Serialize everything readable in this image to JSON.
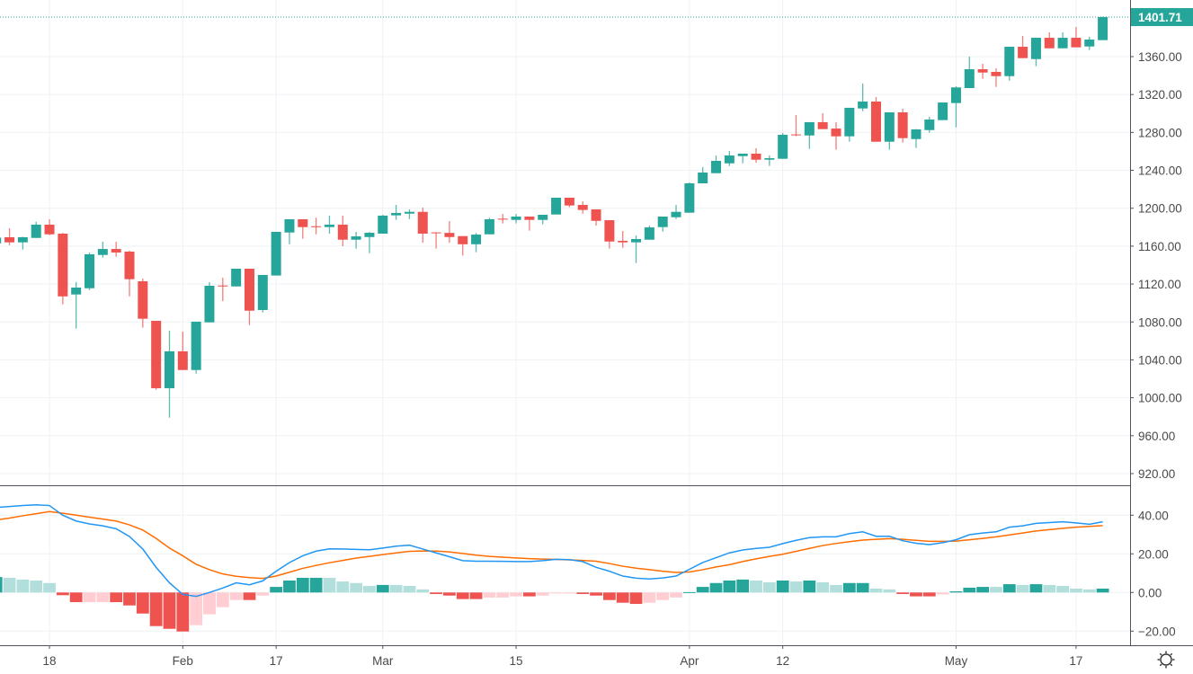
{
  "chart_data": [
    {
      "type": "candlestick",
      "pane": "price",
      "price_axis_ticks": [
        920,
        960,
        1000,
        1040,
        1080,
        1120,
        1160,
        1200,
        1240,
        1280,
        1320,
        1360
      ],
      "price_tick_labels": [
        "920.00",
        "960.00",
        "1000.00",
        "1040.00",
        "1080.00",
        "1120.00",
        "1160.00",
        "1200.00",
        "1240.00",
        "1280.00",
        "1320.00",
        "1360.00"
      ],
      "ylim": [
        907.7,
        1419.7
      ],
      "last_price": 1401.71,
      "last_price_label": "1401.71",
      "grid": true,
      "candle_fields": [
        "open",
        "high",
        "low",
        "close"
      ],
      "candles": [
        [
          1163,
          1170,
          1160,
          1169
        ],
        [
          1169.4,
          1178.9,
          1161,
          1164
        ],
        [
          1164,
          1170,
          1156.4,
          1169.4
        ],
        [
          1168.7,
          1185.8,
          1168.7,
          1182.7
        ],
        [
          1182.7,
          1188.4,
          1171.6,
          1172.5
        ],
        [
          1173.2,
          1174,
          1098.6,
          1107
        ],
        [
          1109,
          1122,
          1073,
          1116.3
        ],
        [
          1115.6,
          1153.3,
          1113.7,
          1151.4
        ],
        [
          1150.7,
          1164.6,
          1147.9,
          1157
        ],
        [
          1157,
          1164.6,
          1148.8,
          1153.3
        ],
        [
          1154.2,
          1155.2,
          1107,
          1125.1
        ],
        [
          1122.9,
          1125.8,
          1074,
          1083.4
        ],
        [
          1081.2,
          1081.2,
          1008.5,
          1010.1
        ],
        [
          1010.1,
          1070.8,
          979,
          1049
        ],
        [
          1049,
          1069.8,
          1029.3,
          1029.3
        ],
        [
          1029.3,
          1080.3,
          1025.5,
          1080.3
        ],
        [
          1079.6,
          1122,
          1079.6,
          1118.2
        ],
        [
          1118.5,
          1126.7,
          1102,
          1117.5
        ],
        [
          1117.5,
          1136.2,
          1117.5,
          1136.2
        ],
        [
          1136.2,
          1136.2,
          1076.7,
          1091.9
        ],
        [
          1092.6,
          1129.6,
          1090,
          1129.6
        ],
        [
          1129,
          1175.1,
          1129,
          1175.1
        ],
        [
          1174.4,
          1188.4,
          1162,
          1188.4
        ],
        [
          1188.4,
          1188.4,
          1167.8,
          1180.1
        ],
        [
          1181,
          1190,
          1172.5,
          1180
        ],
        [
          1180.1,
          1192.2,
          1173.2,
          1182.7
        ],
        [
          1182.7,
          1192.2,
          1159.9,
          1166.8
        ],
        [
          1166.8,
          1175,
          1157.4,
          1170.3
        ],
        [
          1169.6,
          1175,
          1152.6,
          1174.1
        ],
        [
          1173.2,
          1193,
          1173.2,
          1192.2
        ],
        [
          1192.5,
          1203.5,
          1187.7,
          1195
        ],
        [
          1194.3,
          1198.8,
          1188.6,
          1196.2
        ],
        [
          1196.2,
          1200.7,
          1163.7,
          1173.2
        ],
        [
          1174.5,
          1174.8,
          1157.4,
          1173.8
        ],
        [
          1174,
          1186.5,
          1163.7,
          1169.6
        ],
        [
          1170.6,
          1170.6,
          1150.1,
          1162
        ],
        [
          1162,
          1173.8,
          1153.6,
          1172.2
        ],
        [
          1172.5,
          1190,
          1172.5,
          1188.4
        ],
        [
          1189,
          1194,
          1184,
          1188
        ],
        [
          1187.7,
          1194,
          1184,
          1191.2
        ],
        [
          1191.2,
          1191.2,
          1176.3,
          1187.7
        ],
        [
          1187.7,
          1193.1,
          1183,
          1193.1
        ],
        [
          1193.4,
          1211.1,
          1193.4,
          1211.1
        ],
        [
          1211.1,
          1211.1,
          1201,
          1202.9
        ],
        [
          1203.5,
          1207.3,
          1194.3,
          1198.2
        ],
        [
          1198.8,
          1198.8,
          1181.7,
          1186.7
        ],
        [
          1187.4,
          1187.4,
          1157.4,
          1164.9
        ],
        [
          1165.6,
          1176,
          1158.3,
          1164
        ],
        [
          1164,
          1171.3,
          1142.2,
          1167.5
        ],
        [
          1166.8,
          1181.7,
          1166.8,
          1179.8
        ],
        [
          1180.1,
          1191.2,
          1175.4,
          1191.2
        ],
        [
          1190.5,
          1203.5,
          1188.6,
          1196.2
        ],
        [
          1195.3,
          1227.2,
          1195.3,
          1226.3
        ],
        [
          1226.3,
          1243.4,
          1226.3,
          1237.7
        ],
        [
          1237,
          1255.7,
          1237,
          1250
        ],
        [
          1247.4,
          1260.4,
          1244.6,
          1255.7
        ],
        [
          1255,
          1257.6,
          1247.4,
          1257.6
        ],
        [
          1257.6,
          1263.3,
          1248.1,
          1251.2
        ],
        [
          1251.2,
          1255.7,
          1244.6,
          1252.8
        ],
        [
          1252.2,
          1279.4,
          1252.2,
          1277.5
        ],
        [
          1277.9,
          1298.4,
          1275.9,
          1277
        ],
        [
          1276.8,
          1290.8,
          1262.6,
          1290.8
        ],
        [
          1290.8,
          1300.3,
          1283.5,
          1283.5
        ],
        [
          1284.1,
          1290.8,
          1261.7,
          1275.9
        ],
        [
          1275.9,
          1306,
          1270.2,
          1306
        ],
        [
          1305.3,
          1331.6,
          1302.4,
          1312.6
        ],
        [
          1312.6,
          1317.3,
          1270.2,
          1270.2
        ],
        [
          1270.2,
          1301.2,
          1261.7,
          1301.2
        ],
        [
          1301.2,
          1305,
          1269.2,
          1274
        ],
        [
          1273,
          1283.5,
          1263.6,
          1283.2
        ],
        [
          1282.5,
          1296.5,
          1279.7,
          1293.6
        ],
        [
          1293,
          1311.6,
          1293,
          1311.6
        ],
        [
          1311,
          1328.7,
          1285.4,
          1327.5
        ],
        [
          1326.8,
          1360,
          1326.8,
          1346.7
        ],
        [
          1346.7,
          1352.4,
          1336.6,
          1343.2
        ],
        [
          1343.9,
          1347.7,
          1328,
          1339.4
        ],
        [
          1339.4,
          1370.4,
          1334.7,
          1370.4
        ],
        [
          1370.4,
          1381.8,
          1358.4,
          1358.4
        ],
        [
          1357.4,
          1379.9,
          1349.9,
          1379.9
        ],
        [
          1379.9,
          1385.6,
          1368.8,
          1368.8
        ],
        [
          1368.8,
          1385.6,
          1368.8,
          1379.9
        ],
        [
          1379.9,
          1391.3,
          1369.8,
          1369.8
        ],
        [
          1370.7,
          1380.9,
          1366.9,
          1378
        ],
        [
          1377.4,
          1402,
          1377.4,
          1401.71
        ]
      ],
      "colors": {
        "up": "#26a69a",
        "down": "#ef5350"
      }
    },
    {
      "type": "macd",
      "pane": "indicator",
      "axis_ticks": [
        -20,
        0,
        20,
        40
      ],
      "tick_labels": [
        "−20.00",
        "0.00",
        "20.00",
        "40.00"
      ],
      "ylim": [
        -26.8,
        55
      ],
      "grid": true,
      "macd": [
        44,
        44.5,
        45,
        45.4,
        45,
        40,
        37,
        35.5,
        34.5,
        33,
        29,
        22.5,
        13,
        5,
        -1,
        -2,
        0,
        2.3,
        5,
        4,
        6,
        11,
        15.5,
        19,
        21.4,
        22.6,
        22.5,
        22.3,
        22.1,
        23,
        24,
        24.5,
        22.5,
        20.5,
        18.5,
        16.5,
        16.2,
        16.2,
        16.1,
        16,
        16,
        16.5,
        17.2,
        17,
        16,
        13,
        11,
        8.5,
        7.4,
        7,
        7.5,
        8.5,
        12,
        15.5,
        18,
        20.5,
        22,
        22.8,
        23.4,
        25.3,
        27,
        28.4,
        28.8,
        28.8,
        30.5,
        31.4,
        29.1,
        29.1,
        26.8,
        25.5,
        24.8,
        25.8,
        27.3,
        29.9,
        30.8,
        31.4,
        33.8,
        34.5,
        35.8,
        36.2,
        36.6,
        36,
        35.3,
        36.6
      ],
      "signal": [
        37.5,
        38.5,
        39.7,
        40.8,
        41.9,
        41,
        40,
        39,
        38,
        37,
        35,
        32.3,
        28,
        23,
        19,
        14.6,
        11.8,
        9.6,
        8.4,
        7.7,
        7.3,
        8.5,
        10.5,
        12.5,
        14,
        15.4,
        16.6,
        17.8,
        18.7,
        19.6,
        20.5,
        21.3,
        21.5,
        21.4,
        21,
        20.2,
        19.3,
        18.7,
        18.3,
        17.9,
        17.5,
        17.3,
        17.1,
        16.9,
        16.6,
        16.2,
        15,
        13.6,
        12.6,
        11.8,
        11,
        10.4,
        10.6,
        11.8,
        13.2,
        14.4,
        16,
        17.4,
        18.7,
        19.8,
        21.3,
        22.8,
        24.3,
        25.4,
        26.3,
        27.1,
        27.5,
        27.9,
        27.5,
        27,
        26.5,
        26.5,
        26.6,
        27.3,
        28,
        28.8,
        29.8,
        30.8,
        31.8,
        32.5,
        33.2,
        33.8,
        34.2,
        34.6
      ],
      "histogram": [
        8,
        7.6,
        6.7,
        6.2,
        4.9,
        -1.4,
        -5,
        -5,
        -5,
        -5,
        -6.7,
        -10.9,
        -17.4,
        -18.8,
        -20.2,
        -16.9,
        -11.3,
        -7.6,
        -3.9,
        -3.9,
        -1.6,
        2.9,
        6.2,
        7.6,
        7.6,
        7.6,
        5.7,
        4.9,
        3.4,
        3.9,
        3.9,
        3.4,
        1.6,
        -0.8,
        -1.6,
        -3.4,
        -3.4,
        -2.6,
        -2.6,
        -2,
        -2,
        -1.6,
        -0.5,
        -0.5,
        -0.8,
        -1.6,
        -3.9,
        -5.3,
        -5.9,
        -5.3,
        -3.9,
        -2.6,
        0.2,
        2.9,
        4.9,
        6.2,
        6.7,
        6.2,
        5.3,
        6.2,
        5.7,
        6.2,
        5.3,
        3.9,
        4.9,
        4.9,
        2,
        1.6,
        -0.8,
        -2,
        -2,
        -1,
        0.6,
        2.5,
        2.9,
        2.9,
        4.3,
        3.9,
        4.3,
        3.9,
        3.4,
        2,
        1.6,
        2
      ],
      "histogram_shade": [
        "g",
        "lg",
        "lg",
        "lg",
        "lg",
        "r",
        "r",
        "lr",
        "lr",
        "r",
        "r",
        "r",
        "r",
        "r",
        "r",
        "lr",
        "lr",
        "lr",
        "lr",
        "r",
        "lr",
        "g",
        "g",
        "g",
        "g",
        "lg",
        "lg",
        "lg",
        "lg",
        "g",
        "lg",
        "lg",
        "lg",
        "r",
        "r",
        "r",
        "r",
        "lr",
        "lr",
        "lr",
        "r",
        "lr",
        "lr",
        "lr",
        "r",
        "r",
        "r",
        "r",
        "r",
        "lr",
        "lr",
        "lr",
        "g",
        "g",
        "g",
        "g",
        "g",
        "lg",
        "lg",
        "g",
        "lg",
        "g",
        "lg",
        "lg",
        "g",
        "g",
        "lg",
        "lg",
        "r",
        "r",
        "r",
        "lr",
        "g",
        "g",
        "g",
        "lg",
        "g",
        "lg",
        "g",
        "lg",
        "lg",
        "lg",
        "lg",
        "g"
      ],
      "colors": {
        "macd": "#2196f3",
        "signal": "#ff6d00",
        "g": "#26a69a",
        "lg": "#b2dfdb",
        "r": "#ef5350",
        "lr": "#ffcdd2"
      }
    }
  ],
  "time_axis": {
    "labels": [
      {
        "text": "18",
        "candle": 4
      },
      {
        "text": "Feb",
        "candle": 14
      },
      {
        "text": "17",
        "candle": 21
      },
      {
        "text": "Mar",
        "candle": 29
      },
      {
        "text": "15",
        "candle": 39
      },
      {
        "text": "Apr",
        "candle": 52
      },
      {
        "text": "12",
        "candle": 59
      },
      {
        "text": "May",
        "candle": 72
      },
      {
        "text": "17",
        "candle": 81
      }
    ]
  },
  "settings_icon": "sun-gear-icon"
}
